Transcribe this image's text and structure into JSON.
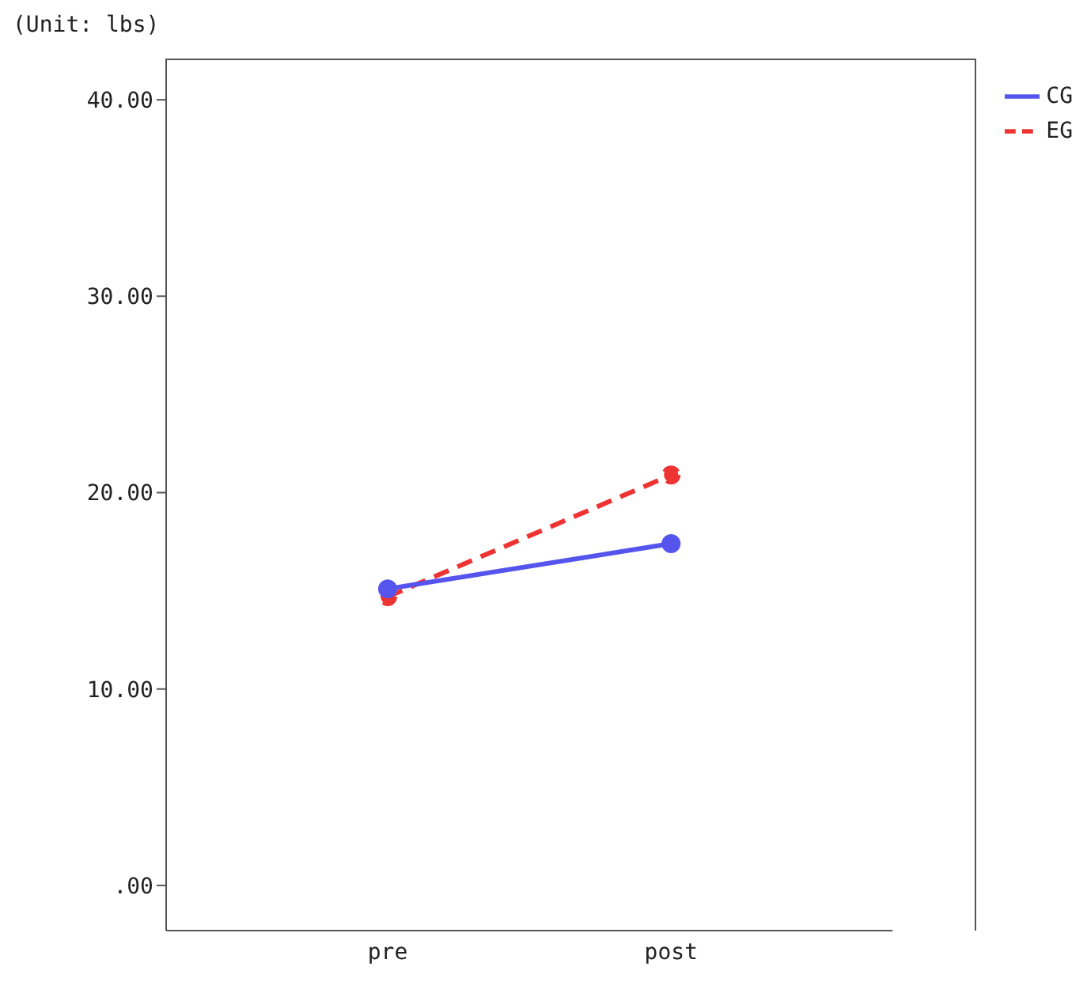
{
  "chart_data": {
    "type": "line",
    "ylabel": "(Unit: lbs)",
    "categories": [
      "pre",
      "post"
    ],
    "series": [
      {
        "name": "EG",
        "color": "#ee3333",
        "values": [
          14.7,
          20.9
        ],
        "line_style": "dashed"
      },
      {
        "name": "CG",
        "color": "#5555ee",
        "values": [
          15.1,
          17.4
        ],
        "line_style": "solid"
      }
    ],
    "ylim": [
      -2.3,
      42.1
    ],
    "yticks": [
      {
        "value": 0,
        "label": ".00"
      },
      {
        "value": 10,
        "label": "10.00"
      },
      {
        "value": 20,
        "label": "20.00"
      },
      {
        "value": 30,
        "label": "30.00"
      },
      {
        "value": 40,
        "label": "40.00"
      }
    ],
    "grid": false,
    "legend": "top right",
    "marker": "circle"
  }
}
